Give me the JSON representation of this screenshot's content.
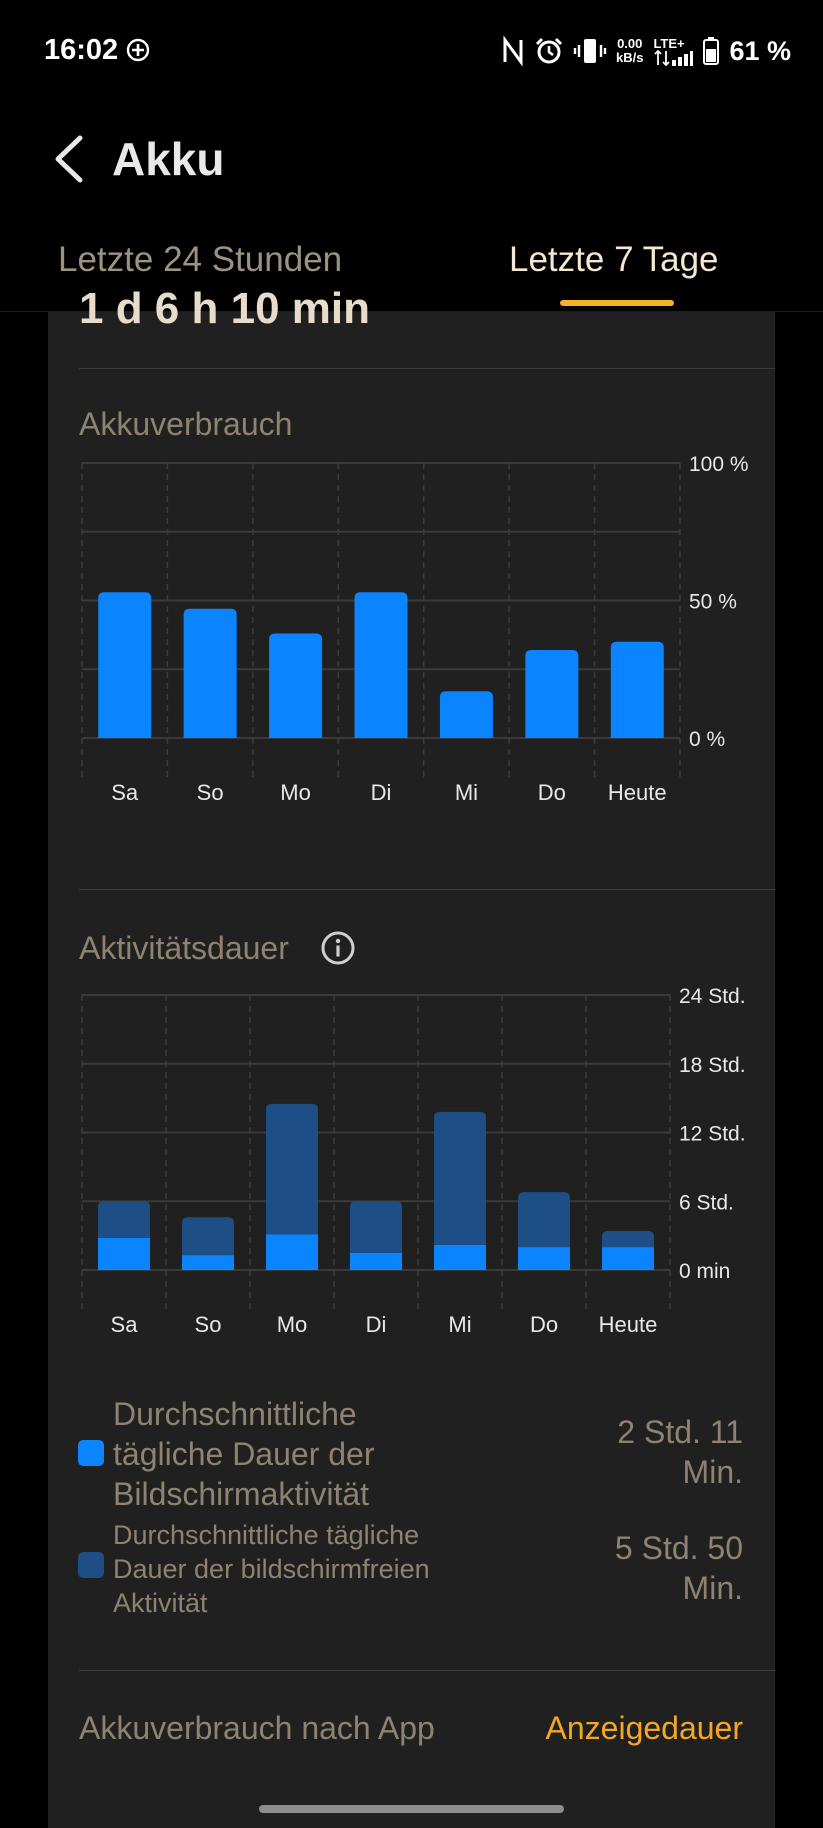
{
  "status_bar": {
    "time": "16:02",
    "net_speed_value": "0.00",
    "net_speed_unit": "kB/s",
    "network": "LTE+",
    "battery": "61 %"
  },
  "header": {
    "title": "Akku"
  },
  "tabs": [
    {
      "label": "Letzte 24 Stunden",
      "active": false
    },
    {
      "label": "Letzte 7 Tage",
      "active": true
    }
  ],
  "summary": {
    "cut_off_value": "1 d 6 h 10 min"
  },
  "battery_usage": {
    "title": "Akkuverbrauch"
  },
  "activity": {
    "title": "Aktivitätsdauer"
  },
  "chart_data": [
    {
      "type": "bar",
      "title": "Akkuverbrauch",
      "categories": [
        "Sa",
        "So",
        "Mo",
        "Di",
        "Mi",
        "Do",
        "Heute"
      ],
      "values": [
        53,
        47,
        38,
        53,
        17,
        32,
        35
      ],
      "ylim": [
        0,
        100
      ],
      "y_ticks": [
        "100 %",
        "50 %",
        "0 %"
      ],
      "unit": "%",
      "color": "#0a84ff"
    },
    {
      "type": "bar",
      "title": "Aktivitätsdauer",
      "stacked": true,
      "categories": [
        "Sa",
        "So",
        "Mo",
        "Di",
        "Mi",
        "Do",
        "Heute"
      ],
      "series": [
        {
          "name": "Durchschnittliche tägliche Dauer der Bildschirmaktivität",
          "color": "#0a84ff",
          "values": [
            2.8,
            1.3,
            3.1,
            1.5,
            2.2,
            2.0,
            2.0
          ]
        },
        {
          "name": "Durchschnittliche tägliche Dauer der bildschirmfreien Aktivität",
          "color": "#1e4e86",
          "values": [
            3.2,
            3.3,
            11.4,
            4.5,
            11.6,
            4.8,
            1.4
          ]
        }
      ],
      "ylim": [
        0,
        24
      ],
      "y_ticks": [
        "24 Std.",
        "18 Std.",
        "12 Std.",
        "6 Std.",
        "0 min"
      ],
      "unit": "Std."
    }
  ],
  "legend": [
    {
      "label": "Durchschnittliche tägliche Dauer der Bildschirmaktivität",
      "value": "2 Std. 11 Min.",
      "color": "#0a84ff"
    },
    {
      "label": "Durchschnittliche tägliche Dauer der bildschirmfreien Aktivität",
      "value": "5 Std. 50 Min.",
      "color": "#1e4e86"
    }
  ],
  "app_usage": {
    "title": "Akkuverbrauch nach App",
    "link": "Anzeigedauer"
  }
}
